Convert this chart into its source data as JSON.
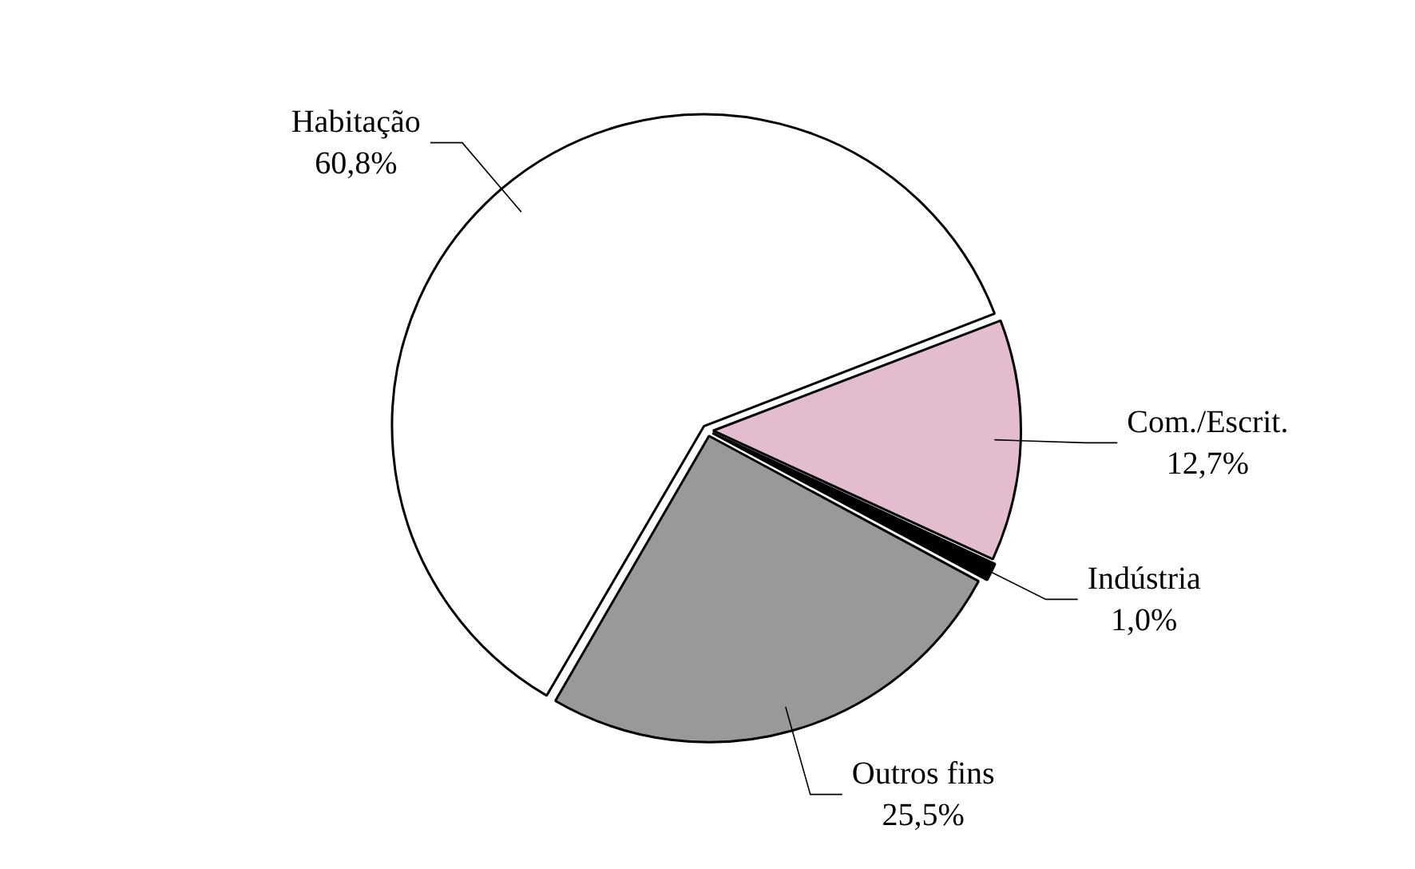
{
  "chart_data": {
    "type": "pie",
    "categories": [
      "Com./Escrit.",
      "Indústria",
      "Outros fins",
      "Habitação"
    ],
    "values": [
      12.7,
      1.0,
      25.5,
      60.8
    ],
    "colors": [
      "#e3bcd0",
      "#000000",
      "#999999",
      "#ffffff"
    ],
    "value_labels": [
      "12,7%",
      "1,0%",
      "25,5%",
      "60,8%"
    ],
    "legend": false
  }
}
